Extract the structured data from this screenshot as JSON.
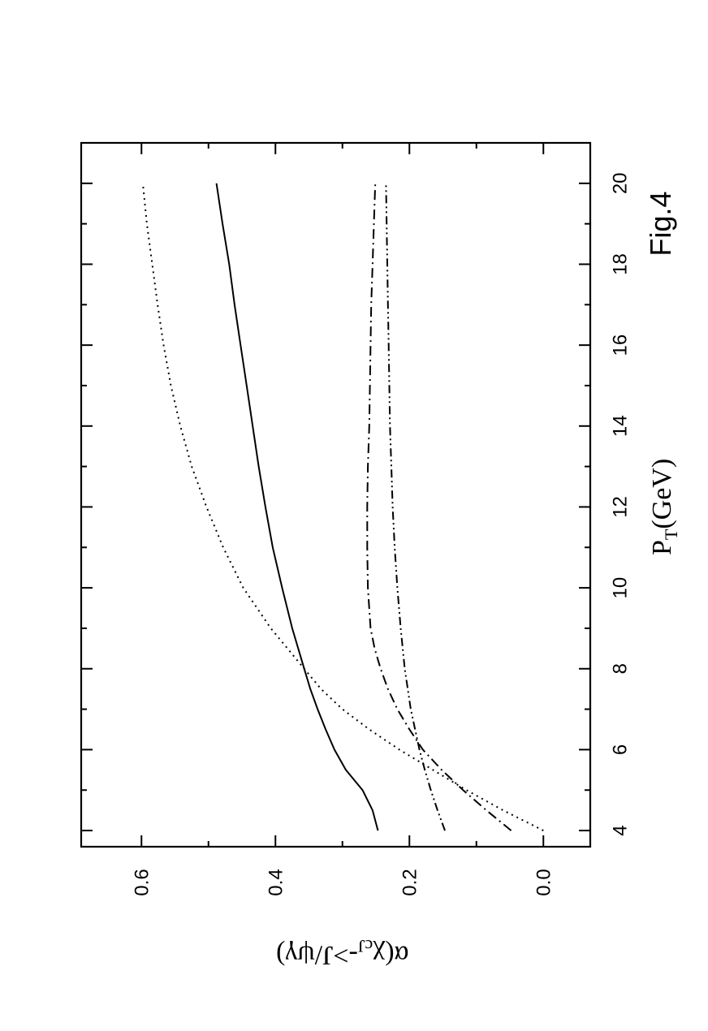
{
  "chart_data": {
    "type": "line",
    "orientation": "page rotated 90 degrees counter-clockwise",
    "figure_label": "Fig.4",
    "xlabel": "P",
    "xlabel_sub": "T",
    "xlabel_unit": "(GeV)",
    "ylabel_prefix": "α(χ",
    "ylabel_sub": "cJ",
    "ylabel_suffix": "->J/ψγ)",
    "xlim": [
      3.6,
      21.0
    ],
    "ylim": [
      -0.07,
      0.69
    ],
    "x_ticks": [
      4,
      6,
      8,
      10,
      12,
      14,
      16,
      18,
      20
    ],
    "x_tick_labels": [
      "4",
      "6",
      "8",
      "10",
      "12",
      "14",
      "16",
      "18",
      "20"
    ],
    "y_ticks": [
      0.0,
      0.2,
      0.4,
      0.6
    ],
    "y_tick_labels": [
      "0.0",
      "0.2",
      "0.4",
      "0.6"
    ],
    "x_minor_step": 1,
    "y_minor_step": 0.1,
    "grid": false,
    "legend": "none",
    "series": [
      {
        "style": "solid",
        "x": [
          4,
          4.5,
          5,
          5.5,
          6,
          6.5,
          7,
          7.5,
          8,
          9,
          10,
          11,
          12,
          13,
          14,
          15,
          16,
          17,
          18,
          19,
          20
        ],
        "y": [
          0.247,
          0.255,
          0.27,
          0.295,
          0.312,
          0.325,
          0.337,
          0.348,
          0.357,
          0.375,
          0.39,
          0.404,
          0.415,
          0.425,
          0.434,
          0.443,
          0.452,
          0.461,
          0.469,
          0.479,
          0.488
        ]
      },
      {
        "style": "dotted",
        "x": [
          4,
          4.5,
          5,
          5.5,
          6,
          6.5,
          7,
          7.5,
          8,
          9,
          10,
          11,
          12,
          13,
          14,
          15,
          16,
          17,
          18,
          19,
          20
        ],
        "y": [
          0.0,
          0.06,
          0.115,
          0.165,
          0.215,
          0.26,
          0.3,
          0.332,
          0.357,
          0.407,
          0.448,
          0.478,
          0.503,
          0.525,
          0.542,
          0.556,
          0.567,
          0.576,
          0.584,
          0.592,
          0.598
        ]
      },
      {
        "style": "dash-dot",
        "x": [
          4,
          4.5,
          5,
          5.5,
          6,
          6.5,
          7,
          7.5,
          8,
          8.5,
          9,
          10,
          11,
          12,
          13,
          14,
          15,
          16,
          17,
          18,
          19,
          20
        ],
        "y": [
          0.048,
          0.085,
          0.12,
          0.152,
          0.18,
          0.2,
          0.218,
          0.232,
          0.243,
          0.252,
          0.258,
          0.262,
          0.263,
          0.263,
          0.262,
          0.26,
          0.259,
          0.258,
          0.257,
          0.255,
          0.253,
          0.251
        ]
      },
      {
        "style": "dash-dot-dot",
        "x": [
          4,
          4.5,
          5,
          5.5,
          6,
          7,
          8,
          9,
          10,
          11,
          12,
          13,
          14,
          15,
          16,
          17,
          18,
          19,
          20
        ],
        "y": [
          0.147,
          0.158,
          0.168,
          0.177,
          0.185,
          0.198,
          0.207,
          0.213,
          0.218,
          0.222,
          0.225,
          0.227,
          0.229,
          0.23,
          0.231,
          0.232,
          0.233,
          0.234,
          0.235
        ]
      }
    ]
  },
  "colors": {
    "ink": "#000000",
    "background": "#ffffff"
  }
}
